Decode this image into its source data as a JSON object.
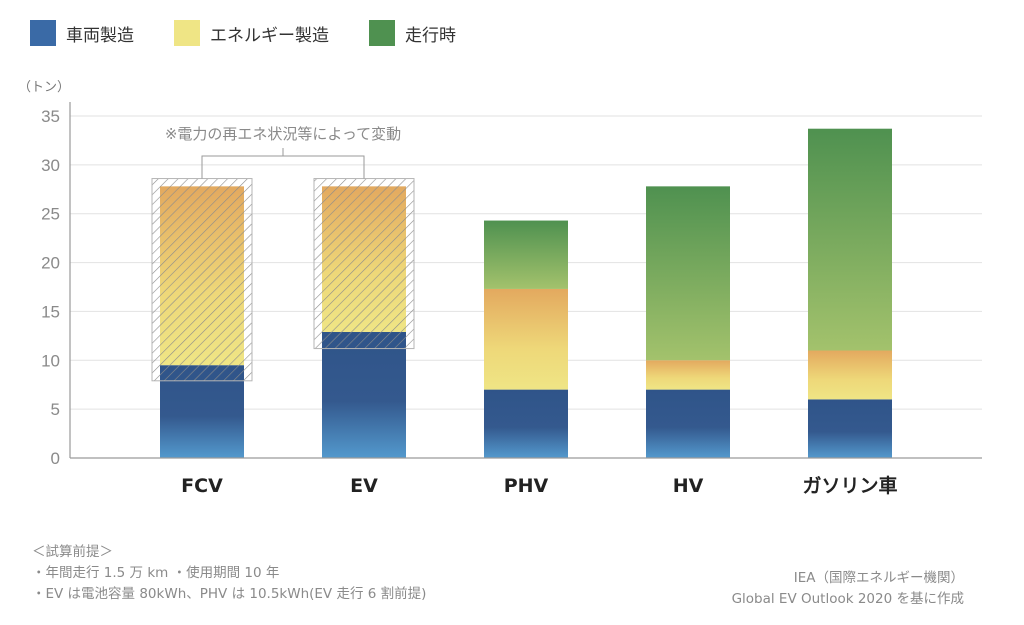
{
  "chart_data": {
    "type": "bar",
    "stacked": true,
    "title": "",
    "xlabel": "",
    "ylabel": "（トン）",
    "ylim": [
      0,
      35
    ],
    "yticks": [
      0,
      5,
      10,
      15,
      20,
      25,
      30,
      35
    ],
    "grid": true,
    "legend_position": "top-left",
    "categories": [
      "FCV",
      "EV",
      "PHV",
      "HV",
      "ガソリン車"
    ],
    "series": [
      {
        "name": "車両製造",
        "color": "#3a6aa6",
        "values": [
          9.5,
          12.9,
          7.0,
          7.0,
          6.0
        ]
      },
      {
        "name": "エネルギー製造",
        "color": "#efe585",
        "values": [
          18.3,
          14.9,
          10.3,
          3.0,
          5.0
        ]
      },
      {
        "name": "走行時",
        "color": "#4f9150",
        "values": [
          0,
          0,
          7.0,
          17.8,
          22.7
        ]
      }
    ],
    "variability_range": {
      "categories": [
        "FCV",
        "EV"
      ],
      "ranges": [
        [
          7.9,
          28.6
        ],
        [
          11.2,
          28.6
        ]
      ],
      "annotation": "※電力の再エネ状況等によって変動"
    }
  },
  "notes": {
    "heading": "＜試算前提＞",
    "line1": "・年間走行 1.5 万 km ・使用期間 10 年",
    "line2": "・EV は電池容量 80kWh、PHV は 10.5kWh(EV 走行 6 割前提)"
  },
  "source": {
    "line1": "IEA（国際エネルギー機関）",
    "line2": "Global EV Outlook 2020 を基に作成"
  }
}
